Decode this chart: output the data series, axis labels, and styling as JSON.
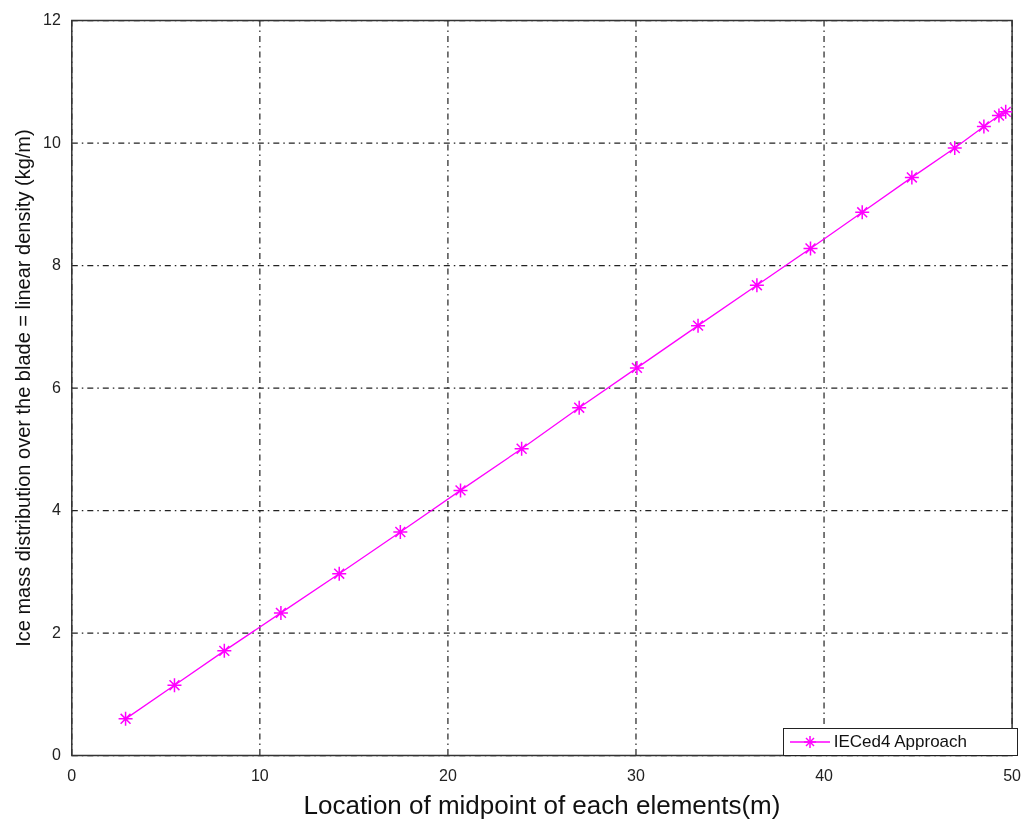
{
  "chart_data": {
    "type": "line",
    "xlabel": "Location of midpoint of each elements(m)",
    "ylabel": "Ice mass distribution over the blade = linear density (kg/m)",
    "series": [
      {
        "name": "IECed4 Approach",
        "color": "#ff00ff",
        "x": [
          2.86,
          5.46,
          8.11,
          11.12,
          14.22,
          17.47,
          20.67,
          23.92,
          26.98,
          30.05,
          33.3,
          36.43,
          39.28,
          42.03,
          44.67,
          46.95,
          48.5,
          49.3,
          49.66
        ],
        "values": [
          0.6,
          1.15,
          1.71,
          2.33,
          2.97,
          3.65,
          4.33,
          5.01,
          5.68,
          6.33,
          7.02,
          7.68,
          8.28,
          8.87,
          9.44,
          9.92,
          10.27,
          10.45,
          10.51
        ]
      }
    ],
    "xlim": [
      0,
      50
    ],
    "xticks": [
      0,
      10,
      20,
      30,
      40,
      50
    ],
    "ylim": [
      0,
      12
    ],
    "yticks": [
      0,
      2,
      4,
      6,
      8,
      10,
      12
    ],
    "grid": true,
    "legend": "bottom right",
    "marker": "cross",
    "line_style": "solid"
  }
}
